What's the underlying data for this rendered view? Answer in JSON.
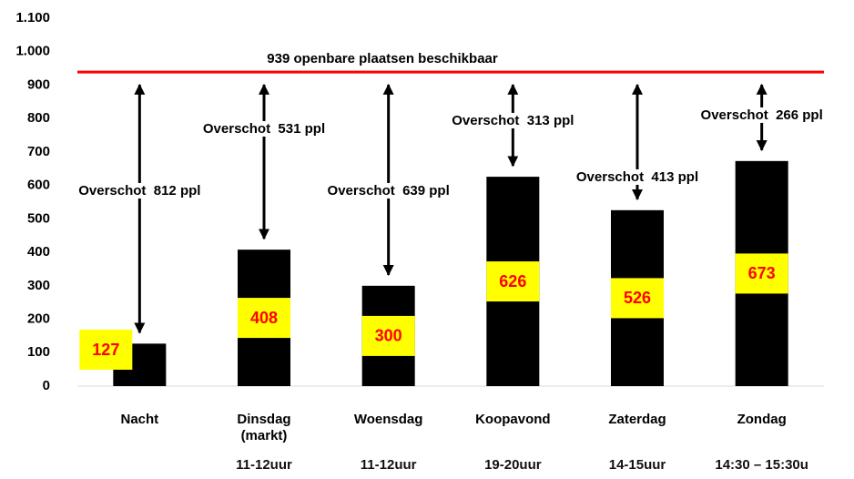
{
  "chart_data": {
    "type": "bar",
    "categories": [
      "Nacht",
      "Dinsdag (markt)",
      "Woensdag",
      "Koopavond",
      "Zaterdag",
      "Zondag"
    ],
    "time_labels": [
      null,
      "11-12uur",
      "11-12uur",
      "19-20uur",
      "14-15uur",
      "14:30 – 15:30u"
    ],
    "values": [
      127,
      408,
      300,
      626,
      526,
      673
    ],
    "color": "#000000",
    "label_box_color": "#ffff00",
    "label_text_color": "#ff0000",
    "capacity": 939,
    "capacity_label": "939 openbare plaatsen beschikbaar",
    "capacity_color": "#ff0000",
    "annotations": [
      "Overschot  812 ppl",
      "Overschot  531 ppl",
      "Overschot  639 ppl",
      "Overschot  313 ppl",
      "Overschot  413 ppl",
      "Overschot  266 ppl"
    ],
    "ylim": [
      0,
      1100
    ],
    "yticks": [
      0,
      100,
      200,
      300,
      400,
      500,
      600,
      700,
      800,
      900,
      {
        "value": 1000,
        "label": "1.000"
      },
      {
        "value": 1100,
        "label": "1.100"
      }
    ],
    "grid": false
  }
}
